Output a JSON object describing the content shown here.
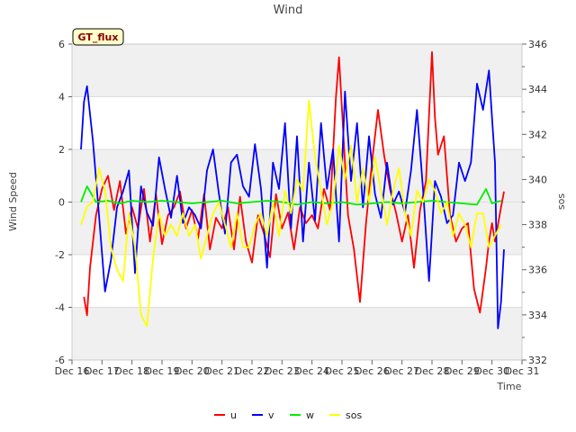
{
  "chart_data": {
    "type": "line",
    "title": "Wind",
    "badge": "GT_flux",
    "xlabel": "Time",
    "ylabel": "Wind Speed",
    "y2label": "sos",
    "ylim": [
      -6,
      6
    ],
    "y2lim": [
      332,
      346
    ],
    "xlim": [
      16,
      31
    ],
    "x_ticks": [
      "Dec 16",
      "Dec 17",
      "Dec 18",
      "Dec 19",
      "Dec 20",
      "Dec 21",
      "Dec 22",
      "Dec 23",
      "Dec 24",
      "Dec 25",
      "Dec 26",
      "Dec 27",
      "Dec 28",
      "Dec 29",
      "Dec 30",
      "Dec 31"
    ],
    "y_ticks": [
      "-6",
      "-4",
      "-2",
      "0",
      "2",
      "4",
      "6"
    ],
    "y2_ticks": [
      "332",
      "334",
      "336",
      "338",
      "340",
      "342",
      "344",
      "346"
    ],
    "legend": [
      "u",
      "v",
      "w",
      "sos"
    ],
    "colors": {
      "u": "#ff0000",
      "v": "#0000ff",
      "w": "#00ee00",
      "sos": "#ffff00",
      "band": "#f0f0f0"
    },
    "series": [
      {
        "name": "u",
        "axis": "left",
        "x": [
          16.4,
          16.5,
          16.6,
          16.8,
          17.0,
          17.2,
          17.4,
          17.6,
          17.8,
          18.0,
          18.2,
          18.4,
          18.6,
          18.8,
          19.0,
          19.2,
          19.4,
          19.6,
          19.8,
          20.0,
          20.2,
          20.4,
          20.6,
          20.8,
          21.0,
          21.2,
          21.4,
          21.6,
          21.8,
          22.0,
          22.2,
          22.4,
          22.6,
          22.8,
          23.0,
          23.2,
          23.4,
          23.6,
          23.8,
          24.0,
          24.2,
          24.4,
          24.6,
          24.8,
          24.9,
          25.0,
          25.1,
          25.2,
          25.4,
          25.6,
          25.8,
          26.0,
          26.2,
          26.4,
          26.6,
          26.8,
          27.0,
          27.2,
          27.4,
          27.6,
          27.8,
          28.0,
          28.1,
          28.2,
          28.4,
          28.6,
          28.8,
          29.0,
          29.2,
          29.4,
          29.6,
          29.8,
          29.9,
          30.0,
          30.1,
          30.3,
          30.4
        ],
        "values": [
          -3.6,
          -4.3,
          -2.5,
          -0.5,
          0.5,
          1.0,
          -0.3,
          0.8,
          -1.2,
          -0.2,
          -1.0,
          0.5,
          -1.5,
          0.3,
          -1.6,
          -0.5,
          -0.2,
          0.4,
          -1.0,
          -0.3,
          -1.4,
          0.3,
          -1.8,
          -0.6,
          -1.0,
          -0.2,
          -1.8,
          0.2,
          -1.5,
          -2.3,
          -0.5,
          -1.2,
          -2.1,
          0.3,
          -1.0,
          -0.4,
          -1.8,
          -0.2,
          -0.8,
          -0.5,
          -1.0,
          0.5,
          -0.3,
          4.0,
          5.5,
          3.5,
          1.5,
          -0.5,
          -1.8,
          -3.8,
          -0.8,
          1.5,
          3.5,
          1.8,
          0.5,
          -0.4,
          -1.5,
          -0.5,
          -2.5,
          -0.3,
          0.8,
          5.7,
          3.2,
          1.8,
          2.5,
          -0.5,
          -1.5,
          -1.0,
          -0.8,
          -3.3,
          -4.2,
          -2.5,
          -1.5,
          -0.8,
          -1.5,
          -0.2,
          0.4
        ]
      },
      {
        "name": "v",
        "axis": "left",
        "x": [
          16.3,
          16.4,
          16.5,
          16.7,
          16.9,
          17.1,
          17.3,
          17.5,
          17.7,
          17.9,
          18.1,
          18.3,
          18.5,
          18.7,
          18.9,
          19.1,
          19.3,
          19.5,
          19.7,
          19.9,
          20.1,
          20.3,
          20.5,
          20.7,
          20.9,
          21.1,
          21.3,
          21.5,
          21.7,
          21.9,
          22.1,
          22.3,
          22.5,
          22.7,
          22.9,
          23.1,
          23.3,
          23.5,
          23.7,
          23.9,
          24.1,
          24.3,
          24.5,
          24.7,
          24.9,
          25.1,
          25.3,
          25.5,
          25.7,
          25.9,
          26.1,
          26.3,
          26.5,
          26.7,
          26.9,
          27.1,
          27.3,
          27.5,
          27.7,
          27.9,
          28.1,
          28.3,
          28.5,
          28.7,
          28.9,
          29.1,
          29.3,
          29.5,
          29.7,
          29.9,
          30.0,
          30.1,
          30.2,
          30.3,
          30.4
        ],
        "values": [
          2.0,
          3.8,
          4.4,
          2.3,
          -0.5,
          -3.4,
          -2.2,
          -0.2,
          0.4,
          1.2,
          -2.7,
          0.6,
          -0.4,
          -0.9,
          1.7,
          0.5,
          -0.6,
          1.0,
          -0.8,
          -0.2,
          -0.5,
          -1.0,
          1.2,
          2.0,
          0.3,
          -1.2,
          1.5,
          1.8,
          0.6,
          0.2,
          2.2,
          0.5,
          -2.5,
          1.5,
          0.5,
          3.0,
          -1.0,
          2.5,
          -1.5,
          1.5,
          -0.7,
          3.0,
          0.5,
          2.0,
          -1.5,
          4.2,
          0.8,
          3.0,
          -0.2,
          2.5,
          0.3,
          -0.6,
          1.5,
          -0.1,
          0.4,
          -0.4,
          1.2,
          3.5,
          0.5,
          -3.0,
          0.8,
          0.2,
          -0.8,
          -0.5,
          1.5,
          0.8,
          1.5,
          4.5,
          3.5,
          5.0,
          3.2,
          1.5,
          -4.8,
          -3.8,
          -1.8
        ]
      },
      {
        "name": "w",
        "axis": "left",
        "x": [
          16.3,
          16.5,
          16.8,
          17.2,
          17.6,
          18.0,
          18.5,
          19.0,
          19.5,
          20.0,
          20.5,
          21.0,
          21.5,
          22.0,
          22.5,
          23.0,
          23.5,
          24.0,
          24.5,
          25.0,
          25.5,
          26.0,
          26.5,
          27.0,
          27.5,
          28.0,
          28.5,
          29.0,
          29.5,
          29.8,
          30.0,
          30.3
        ],
        "values": [
          0.0,
          0.6,
          0.0,
          0.05,
          -0.05,
          0.05,
          0.0,
          0.05,
          0.0,
          -0.05,
          0.0,
          0.05,
          -0.05,
          0.0,
          0.05,
          0.0,
          -0.1,
          0.0,
          -0.05,
          0.0,
          -0.1,
          -0.05,
          0.0,
          -0.05,
          0.0,
          0.05,
          0.0,
          -0.05,
          -0.1,
          0.5,
          -0.05,
          0.05
        ]
      },
      {
        "name": "sos",
        "axis": "right",
        "x": [
          16.3,
          16.5,
          16.7,
          16.9,
          17.1,
          17.3,
          17.5,
          17.7,
          17.9,
          18.1,
          18.3,
          18.5,
          18.7,
          18.9,
          19.1,
          19.3,
          19.5,
          19.7,
          19.9,
          20.1,
          20.3,
          20.5,
          20.7,
          20.9,
          21.1,
          21.3,
          21.5,
          21.7,
          21.9,
          22.1,
          22.3,
          22.5,
          22.7,
          22.9,
          23.1,
          23.3,
          23.5,
          23.7,
          23.9,
          24.1,
          24.3,
          24.5,
          24.7,
          24.9,
          25.1,
          25.3,
          25.5,
          25.7,
          25.9,
          26.1,
          26.3,
          26.5,
          26.7,
          26.9,
          27.1,
          27.3,
          27.5,
          27.7,
          27.9,
          28.1,
          28.3,
          28.5,
          28.7,
          28.9,
          29.1,
          29.3,
          29.5,
          29.7,
          29.9,
          30.1,
          30.3
        ],
        "values": [
          338.0,
          338.8,
          339.0,
          340.5,
          339.5,
          337.0,
          336.0,
          335.5,
          338.5,
          337.0,
          334.0,
          333.5,
          336.5,
          338.5,
          337.5,
          338.0,
          337.5,
          338.5,
          337.5,
          338.0,
          336.5,
          337.5,
          338.5,
          339.0,
          338.0,
          337.0,
          338.5,
          337.0,
          337.0,
          338.0,
          338.5,
          337.5,
          339.0,
          337.5,
          339.5,
          338.5,
          340.0,
          339.5,
          343.5,
          341.0,
          339.5,
          338.0,
          339.0,
          341.5,
          340.0,
          341.5,
          339.0,
          340.5,
          339.0,
          341.0,
          339.5,
          338.0,
          339.5,
          340.5,
          338.5,
          337.5,
          339.5,
          339.0,
          340.0,
          339.5,
          338.5,
          339.0,
          337.5,
          338.5,
          338.0,
          337.0,
          338.5,
          338.5,
          337.0,
          337.5,
          338.0
        ]
      }
    ]
  }
}
